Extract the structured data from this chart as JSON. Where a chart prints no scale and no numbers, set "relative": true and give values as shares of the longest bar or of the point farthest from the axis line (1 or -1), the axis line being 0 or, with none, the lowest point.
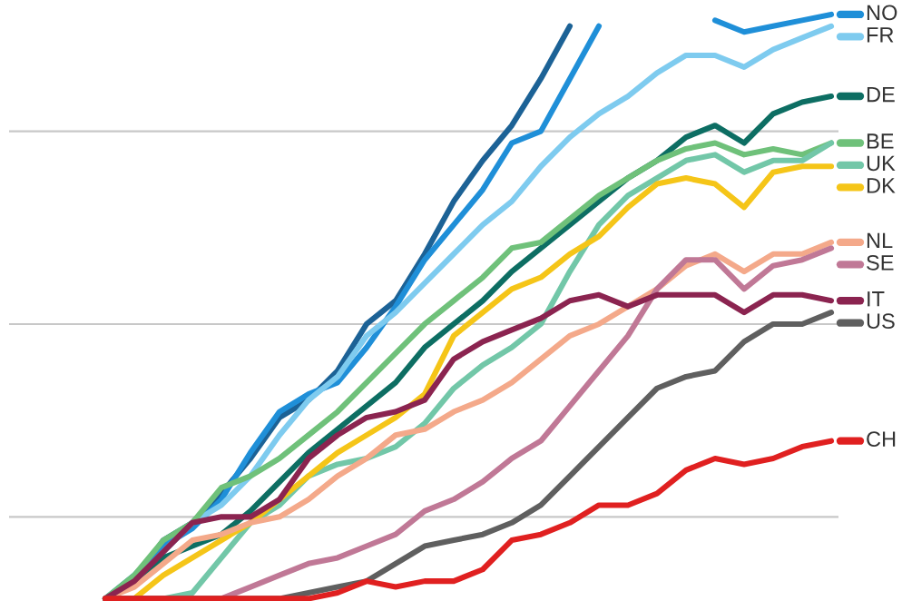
{
  "chart_data": {
    "type": "line",
    "relative": true,
    "legend": "right",
    "line_style": "solid",
    "categories": [
      null,
      null,
      null,
      null,
      null,
      null,
      null,
      null,
      null,
      null,
      null,
      null,
      null,
      null,
      null,
      null,
      null,
      null,
      null,
      null,
      null,
      null,
      null,
      null,
      null,
      null
    ],
    "series": [
      {
        "color": "#1c6296",
        "values": [
          0,
          0.03,
          0.1,
          0.13,
          0.18,
          0.24,
          0.31,
          0.34,
          0.39,
          0.47,
          0.51,
          0.59,
          0.68,
          0.75,
          0.81,
          0.89,
          0.98,
          null,
          null,
          null,
          null,
          null,
          null,
          null,
          null,
          null
        ]
      },
      {
        "name": "NO",
        "color": "#1f8fd8",
        "values": [
          0,
          0.04,
          0.09,
          0.12,
          0.17,
          0.25,
          0.32,
          0.35,
          0.37,
          0.43,
          0.5,
          0.58,
          0.64,
          0.7,
          0.78,
          0.8,
          0.89,
          0.98,
          null,
          null,
          null,
          0.99,
          0.97,
          0.98,
          0.99,
          1
        ]
      },
      {
        "name": "FR",
        "color": "#7ecbef",
        "values": [
          0,
          0.03,
          0.08,
          0.13,
          0.16,
          0.21,
          0.28,
          0.34,
          0.38,
          0.45,
          0.49,
          0.54,
          0.59,
          0.64,
          0.68,
          0.74,
          0.79,
          0.83,
          0.86,
          0.9,
          0.93,
          0.93,
          0.91,
          0.94,
          0.96,
          0.98
        ]
      },
      {
        "name": "DE",
        "color": "#0d6e63",
        "values": [
          0,
          0.03,
          0.07,
          0.09,
          0.11,
          0.15,
          0.2,
          0.25,
          0.29,
          0.33,
          0.37,
          0.43,
          0.47,
          0.51,
          0.56,
          0.6,
          0.64,
          0.68,
          0.72,
          0.75,
          0.79,
          0.81,
          0.78,
          0.83,
          0.85,
          0.86
        ]
      },
      {
        "name": "BE",
        "color": "#6fc17a",
        "values": [
          0,
          0.04,
          0.1,
          0.13,
          0.19,
          0.21,
          0.24,
          0.28,
          0.32,
          0.37,
          0.42,
          0.47,
          0.51,
          0.55,
          0.6,
          0.61,
          0.65,
          0.69,
          0.72,
          0.75,
          0.77,
          0.78,
          0.76,
          0.77,
          0.76,
          0.78
        ]
      },
      {
        "name": "UK",
        "color": "#72c7a8",
        "values": [
          0,
          0,
          0,
          0.01,
          0.07,
          0.13,
          0.16,
          0.21,
          0.23,
          0.24,
          0.26,
          0.3,
          0.36,
          0.4,
          0.43,
          0.47,
          0.56,
          0.64,
          0.69,
          0.72,
          0.75,
          0.76,
          0.73,
          0.75,
          0.75,
          0.78
        ]
      },
      {
        "name": "DK",
        "color": "#f5c518",
        "values": [
          0,
          0,
          0.04,
          0.07,
          0.1,
          0.13,
          0.17,
          0.21,
          0.25,
          0.28,
          0.31,
          0.35,
          0.45,
          0.49,
          0.53,
          0.55,
          0.59,
          0.62,
          0.67,
          0.71,
          0.72,
          0.71,
          0.67,
          0.73,
          0.74,
          0.74
        ]
      },
      {
        "name": "NL",
        "color": "#f4a98a",
        "values": [
          0,
          0.02,
          0.06,
          0.1,
          0.11,
          0.13,
          0.14,
          0.17,
          0.21,
          0.24,
          0.28,
          0.29,
          0.32,
          0.34,
          0.37,
          0.41,
          0.45,
          0.47,
          0.5,
          0.53,
          0.57,
          0.59,
          0.56,
          0.59,
          0.59,
          0.61
        ]
      },
      {
        "name": "SE",
        "color": "#c07896",
        "values": [
          0,
          0,
          0,
          0,
          0,
          0.02,
          0.04,
          0.06,
          0.07,
          0.09,
          0.11,
          0.15,
          0.17,
          0.2,
          0.24,
          0.27,
          0.33,
          0.39,
          0.45,
          0.53,
          0.58,
          0.58,
          0.53,
          0.57,
          0.58,
          0.6
        ]
      },
      {
        "name": "IT",
        "color": "#8b2450",
        "values": [
          0,
          0.03,
          0.08,
          0.13,
          0.14,
          0.14,
          0.17,
          0.24,
          0.28,
          0.31,
          0.32,
          0.34,
          0.41,
          0.44,
          0.46,
          0.48,
          0.51,
          0.52,
          0.5,
          0.52,
          0.52,
          0.52,
          0.49,
          0.52,
          0.52,
          0.51
        ]
      },
      {
        "name": "US",
        "color": "#5f5f5f",
        "values": [
          0,
          0,
          0,
          0,
          0,
          0,
          0,
          0.01,
          0.02,
          0.03,
          0.06,
          0.09,
          0.1,
          0.11,
          0.13,
          0.16,
          0.21,
          0.26,
          0.31,
          0.36,
          0.38,
          0.39,
          0.44,
          0.47,
          0.47,
          0.49
        ]
      },
      {
        "name": "CH",
        "color": "#e02020",
        "values": [
          0,
          0,
          0,
          0,
          0,
          0,
          0,
          0,
          0.01,
          0.03,
          0.02,
          0.03,
          0.03,
          0.05,
          0.1,
          0.11,
          0.13,
          0.16,
          0.16,
          0.18,
          0.22,
          0.24,
          0.23,
          0.24,
          0.26,
          0.27
        ]
      }
    ],
    "ref_lines": [
      {
        "axis": "y",
        "value": 0.8,
        "color": "#c8c8c8"
      },
      {
        "axis": "y",
        "value": 0.47,
        "color": "#c8c8c8"
      },
      {
        "axis": "y",
        "value": 0.14,
        "color": "#c8c8c8"
      }
    ]
  }
}
